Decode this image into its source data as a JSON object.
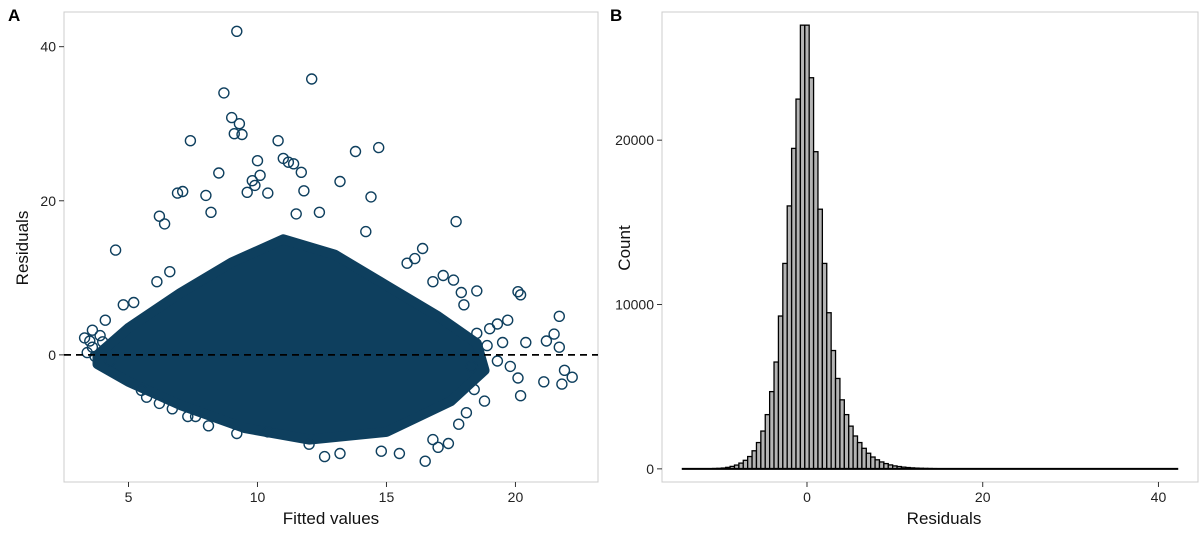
{
  "chart_data": [
    {
      "panel_label": "A",
      "type": "scatter",
      "xlabel": "Fitted values",
      "ylabel": "Residuals",
      "xlim": [
        2.5,
        23.2
      ],
      "ylim": [
        -16.5,
        44.5
      ],
      "xticks": [
        5,
        10,
        15,
        20
      ],
      "yticks": [
        0,
        20,
        40
      ],
      "grid": false,
      "reference_line": {
        "y": 0,
        "style": "dashed",
        "color": "#000000"
      },
      "point_color": "#0e3f5e",
      "bulk_region": {
        "description_points": "dense cloud of residuals around zero",
        "outline": [
          [
            3.8,
            0
          ],
          [
            5,
            3.5
          ],
          [
            7,
            8
          ],
          [
            9,
            12
          ],
          [
            11,
            15
          ],
          [
            13,
            13
          ],
          [
            15,
            9
          ],
          [
            17,
            5
          ],
          [
            18.5,
            1.5
          ],
          [
            18.8,
            -2
          ],
          [
            17.5,
            -6
          ],
          [
            15,
            -10
          ],
          [
            12,
            -11
          ],
          [
            9.5,
            -9.5
          ],
          [
            7,
            -6.5
          ],
          [
            5,
            -3.5
          ],
          [
            3.8,
            -1.2
          ]
        ]
      },
      "points": [
        [
          9.2,
          42
        ],
        [
          12.1,
          35.8
        ],
        [
          8.7,
          34
        ],
        [
          9.0,
          30.8
        ],
        [
          9.3,
          30
        ],
        [
          9.1,
          28.7
        ],
        [
          9.4,
          28.6
        ],
        [
          7.4,
          27.8
        ],
        [
          10.8,
          27.8
        ],
        [
          14.7,
          26.9
        ],
        [
          13.8,
          26.4
        ],
        [
          11.0,
          25.5
        ],
        [
          10.0,
          25.2
        ],
        [
          11.2,
          25.0
        ],
        [
          11.4,
          24.8
        ],
        [
          11.7,
          23.7
        ],
        [
          8.5,
          23.6
        ],
        [
          10.1,
          23.3
        ],
        [
          9.8,
          22.6
        ],
        [
          13.2,
          22.5
        ],
        [
          9.9,
          22.0
        ],
        [
          11.8,
          21.3
        ],
        [
          7.1,
          21.2
        ],
        [
          6.9,
          21.0
        ],
        [
          9.6,
          21.1
        ],
        [
          14.4,
          20.5
        ],
        [
          8.0,
          20.7
        ],
        [
          10.4,
          21.0
        ],
        [
          17.7,
          17.3
        ],
        [
          6.2,
          18.0
        ],
        [
          12.4,
          18.5
        ],
        [
          11.5,
          18.3
        ],
        [
          8.2,
          18.5
        ],
        [
          6.4,
          17.0
        ],
        [
          14.2,
          16.0
        ],
        [
          4.5,
          13.6
        ],
        [
          16.4,
          13.8
        ],
        [
          16.1,
          12.5
        ],
        [
          3.3,
          2.2
        ],
        [
          3.5,
          1.8
        ],
        [
          3.6,
          3.2
        ],
        [
          3.9,
          2.5
        ],
        [
          3.6,
          1.0
        ],
        [
          3.4,
          0.3
        ],
        [
          4.1,
          4.5
        ],
        [
          4.3,
          -0.8
        ],
        [
          4.8,
          6.5
        ],
        [
          5.2,
          6.8
        ],
        [
          6.1,
          9.5
        ],
        [
          6.6,
          10.8
        ],
        [
          5.7,
          -5.5
        ],
        [
          7.3,
          -8.0
        ],
        [
          8.1,
          -9.2
        ],
        [
          9.2,
          -10.2
        ],
        [
          10.4,
          -10.0
        ],
        [
          12.0,
          -11.6
        ],
        [
          12.6,
          -13.2
        ],
        [
          13.2,
          -12.8
        ],
        [
          14.8,
          -12.5
        ],
        [
          15.5,
          -12.8
        ],
        [
          16.5,
          -13.8
        ],
        [
          17.0,
          -12.0
        ],
        [
          17.4,
          -11.5
        ],
        [
          16.8,
          -11.0
        ],
        [
          18.5,
          2.8
        ],
        [
          18.9,
          1.2
        ],
        [
          19.3,
          -0.8
        ],
        [
          19.5,
          1.6
        ],
        [
          19.8,
          -1.5
        ],
        [
          19.3,
          4.0
        ],
        [
          19.7,
          4.5
        ],
        [
          20.1,
          8.2
        ],
        [
          20.2,
          7.8
        ],
        [
          20.1,
          -3.0
        ],
        [
          20.2,
          -5.3
        ],
        [
          20.4,
          1.6
        ],
        [
          21.2,
          1.8
        ],
        [
          21.5,
          2.7
        ],
        [
          21.1,
          -3.5
        ],
        [
          21.7,
          5.0
        ],
        [
          21.7,
          1.0
        ],
        [
          21.9,
          -2.0
        ],
        [
          21.8,
          -3.8
        ],
        [
          22.2,
          -2.9
        ],
        [
          18.3,
          -1.5
        ],
        [
          18.1,
          -7.5
        ],
        [
          17.8,
          -9.0
        ],
        [
          18.4,
          -4.5
        ],
        [
          18.8,
          -6.0
        ],
        [
          17.6,
          9.7
        ],
        [
          17.2,
          10.3
        ],
        [
          16.8,
          9.5
        ],
        [
          15.8,
          11.9
        ],
        [
          7.6,
          -8.0
        ],
        [
          6.7,
          -7.0
        ],
        [
          6.2,
          -6.3
        ],
        [
          5.5,
          -4.6
        ],
        [
          18.0,
          6.5
        ],
        [
          18.5,
          8.3
        ],
        [
          19.0,
          3.4
        ],
        [
          17.9,
          8.1
        ],
        [
          4.0,
          1.7
        ],
        [
          3.7,
          -0.2
        ]
      ]
    },
    {
      "panel_label": "B",
      "type": "bar",
      "xlabel": "Residuals",
      "ylabel": "Count",
      "xlim": [
        -16.5,
        44.5
      ],
      "ylim": [
        -800,
        27800
      ],
      "xticks": [
        0,
        20,
        40
      ],
      "yticks": [
        0,
        10000,
        20000
      ],
      "grid": false,
      "bar_fill": "#b4b4b4",
      "bar_stroke": "#000000",
      "bins": [
        [
          -14,
          0
        ],
        [
          -13.5,
          0
        ],
        [
          -13,
          0
        ],
        [
          -12.5,
          0
        ],
        [
          -12,
          0
        ],
        [
          -11.5,
          0
        ],
        [
          -11,
          10
        ],
        [
          -10.5,
          20
        ],
        [
          -10,
          30
        ],
        [
          -9.5,
          50
        ],
        [
          -9,
          90
        ],
        [
          -8.5,
          150
        ],
        [
          -8,
          230
        ],
        [
          -7.5,
          350
        ],
        [
          -7,
          520
        ],
        [
          -6.5,
          750
        ],
        [
          -6,
          1100
        ],
        [
          -5.5,
          1600
        ],
        [
          -5,
          2300
        ],
        [
          -4.5,
          3300
        ],
        [
          -4,
          4700
        ],
        [
          -3.5,
          6500
        ],
        [
          -3,
          9300
        ],
        [
          -2.5,
          12500
        ],
        [
          -2,
          16000
        ],
        [
          -1.5,
          19500
        ],
        [
          -1,
          22500
        ],
        [
          -0.5,
          27000
        ],
        [
          0,
          27000
        ],
        [
          0.5,
          23800
        ],
        [
          1,
          19300
        ],
        [
          1.5,
          15800
        ],
        [
          2,
          12500
        ],
        [
          2.5,
          9500
        ],
        [
          3,
          7200
        ],
        [
          3.5,
          5500
        ],
        [
          4,
          4200
        ],
        [
          4.5,
          3300
        ],
        [
          5,
          2600
        ],
        [
          5.5,
          2000
        ],
        [
          6,
          1600
        ],
        [
          6.5,
          1250
        ],
        [
          7,
          950
        ],
        [
          7.5,
          720
        ],
        [
          8,
          550
        ],
        [
          8.5,
          420
        ],
        [
          9,
          320
        ],
        [
          9.5,
          240
        ],
        [
          10,
          180
        ],
        [
          10.5,
          140
        ],
        [
          11,
          105
        ],
        [
          11.5,
          80
        ],
        [
          12,
          60
        ],
        [
          12.5,
          45
        ],
        [
          13,
          35
        ],
        [
          13.5,
          26
        ],
        [
          14,
          20
        ],
        [
          14.5,
          15
        ],
        [
          15,
          11
        ],
        [
          15.5,
          8
        ],
        [
          16,
          6
        ],
        [
          16.5,
          5
        ],
        [
          17,
          4
        ],
        [
          17.5,
          3
        ],
        [
          18,
          2
        ],
        [
          18.5,
          2
        ],
        [
          19,
          1
        ],
        [
          19.5,
          1
        ],
        [
          20,
          1
        ],
        [
          21,
          0
        ],
        [
          22,
          0
        ],
        [
          23,
          0
        ],
        [
          24,
          0
        ],
        [
          25,
          0
        ],
        [
          26,
          0
        ],
        [
          27,
          0
        ],
        [
          28,
          0
        ],
        [
          29,
          0
        ],
        [
          30,
          0
        ],
        [
          31,
          0
        ],
        [
          32,
          0
        ],
        [
          33,
          0
        ],
        [
          34,
          0
        ],
        [
          35,
          0
        ],
        [
          36,
          0
        ],
        [
          37,
          0
        ],
        [
          38,
          0
        ],
        [
          39,
          0
        ],
        [
          40,
          0
        ],
        [
          41,
          0
        ],
        [
          42,
          0
        ]
      ],
      "bin_width": 0.5
    }
  ]
}
